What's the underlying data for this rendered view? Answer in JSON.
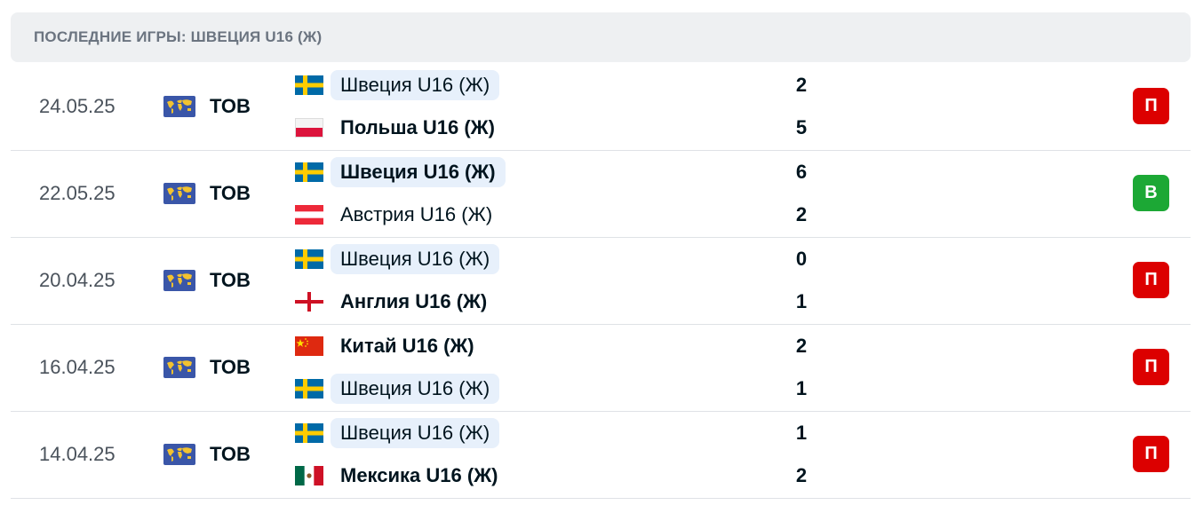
{
  "header": {
    "title": "ПОСЛЕДНИЕ ИГРЫ: ШВЕЦИЯ U16 (Ж)"
  },
  "colors": {
    "loss": "#dc0000",
    "win": "#1ca835",
    "highlight": "#e7f0fb",
    "header_bg": "#eef0f2"
  },
  "matches": [
    {
      "date": "24.05.25",
      "competition": "ТОВ",
      "competition_icon": "world-map-icon",
      "home": {
        "name": "Швеция U16 (Ж)",
        "flag": "sweden",
        "score": "2",
        "highlight": true,
        "winner": false
      },
      "away": {
        "name": "Польша U16 (Ж)",
        "flag": "poland",
        "score": "5",
        "highlight": false,
        "winner": true
      },
      "result": "П",
      "result_type": "loss"
    },
    {
      "date": "22.05.25",
      "competition": "ТОВ",
      "competition_icon": "world-map-icon",
      "home": {
        "name": "Швеция U16 (Ж)",
        "flag": "sweden",
        "score": "6",
        "highlight": true,
        "winner": true
      },
      "away": {
        "name": "Австрия U16 (Ж)",
        "flag": "austria",
        "score": "2",
        "highlight": false,
        "winner": false
      },
      "result": "В",
      "result_type": "win"
    },
    {
      "date": "20.04.25",
      "competition": "ТОВ",
      "competition_icon": "world-map-icon",
      "home": {
        "name": "Швеция U16 (Ж)",
        "flag": "sweden",
        "score": "0",
        "highlight": true,
        "winner": false
      },
      "away": {
        "name": "Англия U16 (Ж)",
        "flag": "england",
        "score": "1",
        "highlight": false,
        "winner": true
      },
      "result": "П",
      "result_type": "loss"
    },
    {
      "date": "16.04.25",
      "competition": "ТОВ",
      "competition_icon": "world-map-icon",
      "home": {
        "name": "Китай U16 (Ж)",
        "flag": "china",
        "score": "2",
        "highlight": false,
        "winner": true
      },
      "away": {
        "name": "Швеция U16 (Ж)",
        "flag": "sweden",
        "score": "1",
        "highlight": true,
        "winner": false
      },
      "result": "П",
      "result_type": "loss"
    },
    {
      "date": "14.04.25",
      "competition": "ТОВ",
      "competition_icon": "world-map-icon",
      "home": {
        "name": "Швеция U16 (Ж)",
        "flag": "sweden",
        "score": "1",
        "highlight": true,
        "winner": false
      },
      "away": {
        "name": "Мексика U16 (Ж)",
        "flag": "mexico",
        "score": "2",
        "highlight": false,
        "winner": true
      },
      "result": "П",
      "result_type": "loss"
    }
  ]
}
